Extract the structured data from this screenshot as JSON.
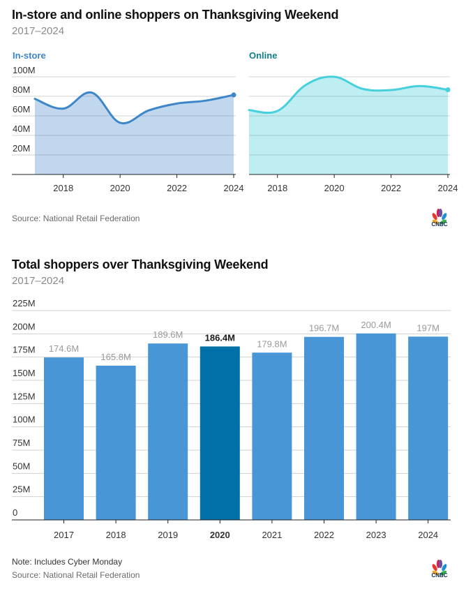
{
  "colors": {
    "instore_line": "#3d87c9",
    "instore_fill": "#c0d7ee",
    "online_line": "#45d0dc",
    "online_fill": "#bfeef2",
    "instore_label": "#3d87c9",
    "online_label": "#12808c",
    "bar": "#4896d6",
    "bar_highlight": "#0070a9",
    "grid": "#d0d0d0",
    "axis": "#222222"
  },
  "top": {
    "title": "In-store and online shoppers on Thanksgiving Weekend",
    "subtitle": "2017–2024",
    "source": "Source: National Retail Federation",
    "logo": "CNBC"
  },
  "bottom": {
    "title": "Total shoppers over Thanksgiving Weekend",
    "subtitle": "2017–2024",
    "note": "Note: Includes Cyber Monday",
    "source": "Source: National Retail Federation",
    "logo": "CNBC"
  },
  "chart_data": [
    {
      "type": "area",
      "title": "In-store",
      "x": [
        2017,
        2018,
        2019,
        2020,
        2021,
        2022,
        2023,
        2024
      ],
      "values": [
        77.4,
        67.4,
        83.8,
        52.9,
        65.5,
        72.6,
        75.5,
        81.4
      ],
      "unit": "M",
      "ylim": [
        0,
        100
      ],
      "yticks": [
        20,
        40,
        60,
        80,
        100
      ],
      "ytick_labels": [
        "20M",
        "40M",
        "60M",
        "80M",
        "100M"
      ],
      "xticks": [
        2018,
        2020,
        2022,
        2024
      ],
      "xtick_labels": [
        "2018",
        "2020",
        "2022",
        "2024"
      ],
      "grid": true
    },
    {
      "type": "area",
      "title": "Online",
      "x": [
        2017,
        2018,
        2019,
        2020,
        2021,
        2022,
        2023,
        2024
      ],
      "values": [
        65.9,
        65.0,
        91.7,
        100.0,
        87.6,
        86.4,
        90.5,
        86.7
      ],
      "unit": "M",
      "ylim": [
        0,
        100
      ],
      "yticks": [
        20,
        40,
        60,
        80,
        100
      ],
      "xticks": [
        2018,
        2020,
        2022,
        2024
      ],
      "xtick_labels": [
        "2018",
        "2020",
        "2022",
        "2024"
      ],
      "grid": true
    },
    {
      "type": "bar",
      "title": "Total shoppers over Thanksgiving Weekend",
      "categories": [
        "2017",
        "2018",
        "2019",
        "2020",
        "2021",
        "2022",
        "2023",
        "2024"
      ],
      "values": [
        174.6,
        165.8,
        189.6,
        186.4,
        179.8,
        196.7,
        200.4,
        197
      ],
      "value_labels": [
        "174.6M",
        "165.8M",
        "189.6M",
        "186.4M",
        "179.8M",
        "196.7M",
        "200.4M",
        "197M"
      ],
      "highlight": "2020",
      "ylim": [
        0,
        225
      ],
      "yticks": [
        0,
        25,
        50,
        75,
        100,
        125,
        150,
        175,
        200,
        225
      ],
      "ytick_labels": [
        "0",
        "25M",
        "50M",
        "75M",
        "100M",
        "125M",
        "150M",
        "175M",
        "200M",
        "225M"
      ],
      "grid": true
    }
  ]
}
